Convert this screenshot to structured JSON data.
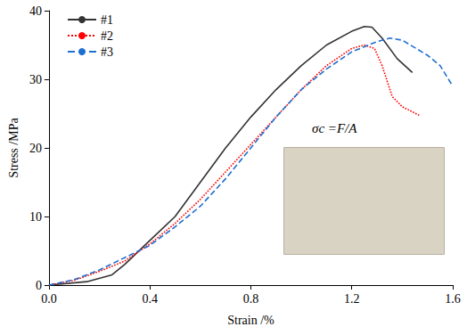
{
  "chart_data": {
    "type": "line",
    "x_label": "Strain /%",
    "y_label": "Stress /MPa",
    "annotation": "σc =F/A",
    "xlim": [
      0,
      1.6
    ],
    "xticks": [
      {
        "value": 0,
        "label": "0.0"
      },
      {
        "value": 0.4,
        "label": "0.4"
      },
      {
        "value": 0.8,
        "label": "0.8"
      },
      {
        "value": 1.2,
        "label": "1.2"
      },
      {
        "value": 1.6,
        "label": "1.6"
      }
    ],
    "ylim": [
      0,
      40
    ],
    "yticks": [
      0,
      10,
      20,
      30,
      40
    ],
    "grid": false,
    "legend": "upper left",
    "series": [
      {
        "name": "#1",
        "color": "#333333",
        "line_style": "solid",
        "x": [
          0,
          0.15,
          0.25,
          0.3,
          0.4,
          0.5,
          0.6,
          0.7,
          0.8,
          0.9,
          1.0,
          1.1,
          1.2,
          1.25,
          1.28,
          1.32,
          1.38,
          1.44
        ],
        "values": [
          0,
          0.5,
          1.5,
          3,
          6.5,
          10,
          15,
          20,
          24.5,
          28.5,
          32,
          35,
          37,
          37.7,
          37.6,
          36,
          33,
          31
        ]
      },
      {
        "name": "#2",
        "color": "#ff0000",
        "line_style": "dotted",
        "x": [
          0,
          0.1,
          0.2,
          0.3,
          0.4,
          0.5,
          0.6,
          0.7,
          0.8,
          0.9,
          1.0,
          1.1,
          1.2,
          1.25,
          1.29,
          1.32,
          1.36,
          1.4,
          1.47
        ],
        "values": [
          0,
          0.7,
          2,
          3.5,
          6,
          9,
          12.5,
          16.5,
          20.5,
          24.5,
          28.5,
          32,
          34.5,
          35,
          34.5,
          32,
          27.5,
          26,
          24.7
        ]
      },
      {
        "name": "#3",
        "color": "#1f6fd0",
        "line_style": "dashed",
        "x": [
          0,
          0.1,
          0.2,
          0.3,
          0.4,
          0.5,
          0.6,
          0.7,
          0.8,
          0.9,
          1.0,
          1.1,
          1.2,
          1.3,
          1.35,
          1.4,
          1.5,
          1.55,
          1.6
        ],
        "values": [
          0,
          0.8,
          2.2,
          4,
          5.8,
          8.5,
          11.5,
          15.5,
          20,
          24.5,
          28.5,
          31.5,
          34,
          35.5,
          36,
          35.7,
          33.5,
          32,
          29
        ]
      }
    ]
  }
}
